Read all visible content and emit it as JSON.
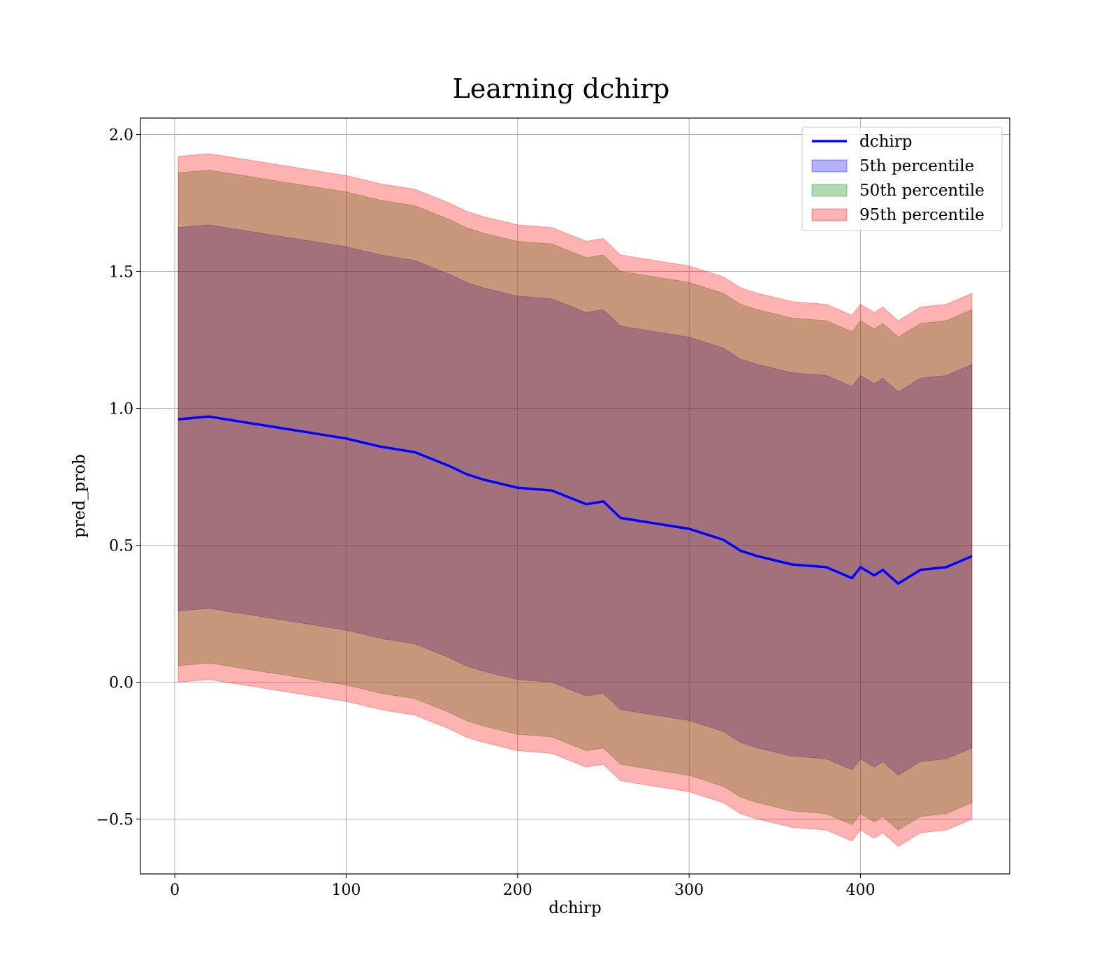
{
  "chart_data": {
    "type": "line",
    "title": "Learning dchirp",
    "xlabel": "dchirp",
    "ylabel": "pred_prob",
    "xlim": [
      -20,
      487
    ],
    "ylim": [
      -0.7,
      2.06
    ],
    "xticks": [
      0,
      100,
      200,
      300,
      400
    ],
    "xtick_labels": [
      "0",
      "100",
      "200",
      "300",
      "400"
    ],
    "yticks": [
      -0.5,
      0.0,
      0.5,
      1.0,
      1.5,
      2.0
    ],
    "ytick_labels": [
      "−0.5",
      "0.0",
      "0.5",
      "1.0",
      "1.5",
      "2.0"
    ],
    "grid": true,
    "legend_position": "top-right",
    "x": [
      2,
      20,
      40,
      60,
      80,
      100,
      120,
      140,
      160,
      170,
      180,
      200,
      220,
      240,
      250,
      260,
      280,
      300,
      320,
      330,
      340,
      360,
      380,
      395,
      400,
      408,
      413,
      422,
      435,
      450,
      465
    ],
    "series": [
      {
        "name": "dchirp",
        "kind": "line",
        "color": "#0000ff",
        "values": [
          0.96,
          0.97,
          0.95,
          0.93,
          0.91,
          0.89,
          0.86,
          0.84,
          0.79,
          0.76,
          0.74,
          0.71,
          0.7,
          0.65,
          0.66,
          0.6,
          0.58,
          0.56,
          0.52,
          0.48,
          0.46,
          0.43,
          0.42,
          0.38,
          0.42,
          0.39,
          0.41,
          0.36,
          0.41,
          0.42,
          0.46
        ]
      },
      {
        "name": "5th percentile",
        "kind": "band",
        "color": "#0000ff",
        "lower": [
          0.26,
          0.27,
          0.25,
          0.23,
          0.21,
          0.19,
          0.16,
          0.14,
          0.09,
          0.06,
          0.04,
          0.01,
          0.0,
          -0.05,
          -0.04,
          -0.1,
          -0.12,
          -0.14,
          -0.18,
          -0.22,
          -0.24,
          -0.27,
          -0.28,
          -0.32,
          -0.28,
          -0.31,
          -0.29,
          -0.34,
          -0.29,
          -0.28,
          -0.24
        ],
        "upper": [
          1.66,
          1.67,
          1.65,
          1.63,
          1.61,
          1.59,
          1.56,
          1.54,
          1.49,
          1.46,
          1.44,
          1.41,
          1.4,
          1.35,
          1.36,
          1.3,
          1.28,
          1.26,
          1.22,
          1.18,
          1.16,
          1.13,
          1.12,
          1.08,
          1.12,
          1.09,
          1.11,
          1.06,
          1.11,
          1.12,
          1.16
        ]
      },
      {
        "name": "50th percentile",
        "kind": "band",
        "color": "#008000",
        "lower": [
          0.06,
          0.07,
          0.05,
          0.03,
          0.01,
          -0.01,
          -0.04,
          -0.06,
          -0.11,
          -0.14,
          -0.16,
          -0.19,
          -0.2,
          -0.25,
          -0.24,
          -0.3,
          -0.32,
          -0.34,
          -0.38,
          -0.42,
          -0.44,
          -0.47,
          -0.48,
          -0.52,
          -0.48,
          -0.51,
          -0.49,
          -0.54,
          -0.49,
          -0.48,
          -0.44
        ],
        "upper": [
          1.86,
          1.87,
          1.85,
          1.83,
          1.81,
          1.79,
          1.76,
          1.74,
          1.69,
          1.66,
          1.64,
          1.61,
          1.6,
          1.55,
          1.56,
          1.5,
          1.48,
          1.46,
          1.42,
          1.38,
          1.36,
          1.33,
          1.32,
          1.28,
          1.32,
          1.29,
          1.31,
          1.26,
          1.31,
          1.32,
          1.36
        ]
      },
      {
        "name": "95th percentile",
        "kind": "band",
        "color": "#ff0000",
        "lower": [
          0.0,
          0.01,
          -0.01,
          -0.03,
          -0.05,
          -0.07,
          -0.1,
          -0.12,
          -0.17,
          -0.2,
          -0.22,
          -0.25,
          -0.26,
          -0.31,
          -0.3,
          -0.36,
          -0.38,
          -0.4,
          -0.44,
          -0.48,
          -0.5,
          -0.53,
          -0.54,
          -0.58,
          -0.54,
          -0.57,
          -0.55,
          -0.6,
          -0.55,
          -0.54,
          -0.5
        ],
        "upper": [
          1.92,
          1.93,
          1.91,
          1.89,
          1.87,
          1.85,
          1.82,
          1.8,
          1.75,
          1.72,
          1.7,
          1.67,
          1.66,
          1.61,
          1.62,
          1.56,
          1.54,
          1.52,
          1.48,
          1.44,
          1.42,
          1.39,
          1.38,
          1.34,
          1.38,
          1.35,
          1.37,
          1.32,
          1.37,
          1.38,
          1.42
        ]
      }
    ]
  }
}
